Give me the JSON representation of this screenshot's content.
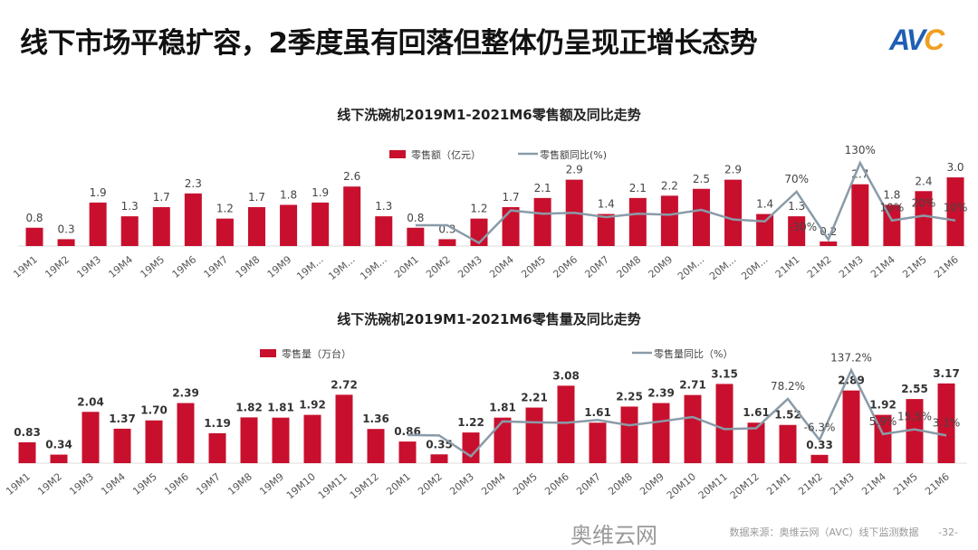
{
  "header": {
    "title": "线下市场平稳扩容，2季度虽有回落但整体仍呈现正增长态势",
    "logo": "AVC"
  },
  "footer": {
    "source": "数据来源：奥维云网（AVC）线下监测数据",
    "page": "-32-",
    "watermark": "奥维云网"
  },
  "colors": {
    "bar": "#c8102e",
    "line": "#8a9ba8"
  },
  "chart_data": [
    {
      "type": "bar+line",
      "title": "线下洗碗机2019M1-2021M6零售额及同比走势",
      "legend_position": "top",
      "categories": [
        "19M1",
        "19M2",
        "19M3",
        "19M4",
        "19M5",
        "19M6",
        "19M7",
        "19M8",
        "19M9",
        "19M...",
        "19M...",
        "19M...",
        "20M1",
        "20M2",
        "20M3",
        "20M4",
        "20M5",
        "20M6",
        "20M7",
        "20M8",
        "20M9",
        "20M...",
        "20M...",
        "20M...",
        "21M1",
        "21M2",
        "21M3",
        "21M4",
        "21M5",
        "21M6"
      ],
      "series": [
        {
          "name": "零售额（亿元）",
          "type": "bar",
          "values": [
            0.8,
            0.3,
            1.9,
            1.3,
            1.7,
            2.3,
            1.2,
            1.7,
            1.8,
            1.9,
            2.6,
            1.3,
            0.8,
            0.3,
            1.2,
            1.7,
            2.1,
            2.9,
            1.4,
            2.1,
            2.2,
            2.5,
            2.9,
            1.4,
            1.3,
            0.2,
            2.7,
            1.8,
            2.4,
            3.0
          ],
          "labels": [
            "0.8",
            "0.3",
            "1.9",
            "1.3",
            "1.7",
            "2.3",
            "1.2",
            "1.7",
            "1.8",
            "1.9",
            "2.6",
            "1.3",
            "0.8",
            "0.3",
            "1.2",
            "1.7",
            "2.1",
            "2.9",
            "1.4",
            "2.1",
            "2.2",
            "2.5",
            "2.9",
            "1.4",
            "1.3",
            "0.2",
            "2.7",
            "1.8",
            "2.4",
            "3.0"
          ]
        },
        {
          "name": "零售额同比(%)",
          "type": "line",
          "values": [
            null,
            null,
            null,
            null,
            null,
            null,
            null,
            null,
            null,
            null,
            null,
            null,
            0,
            0,
            -37,
            31,
            24,
            26,
            17,
            24,
            22,
            32,
            12,
            8,
            70,
            -30,
            130,
            10,
            20,
            10
          ],
          "labels": [
            "",
            "",
            "",
            "",
            "",
            "",
            "",
            "",
            "",
            "",
            "",
            "",
            "",
            "",
            "",
            "",
            "",
            "",
            "",
            "",
            "",
            "",
            "",
            "",
            "70%",
            "-30%",
            "130%",
            "10%",
            "20%",
            "10%"
          ]
        }
      ]
    },
    {
      "type": "bar+line",
      "title": "线下洗碗机2019M1-2021M6零售量及同比走势",
      "legend_position": "top",
      "categories": [
        "19M1",
        "19M2",
        "19M3",
        "19M4",
        "19M5",
        "19M6",
        "19M7",
        "19M8",
        "19M9",
        "19M10",
        "19M11",
        "19M12",
        "20M1",
        "20M2",
        "20M3",
        "20M4",
        "20M5",
        "20M6",
        "20M7",
        "20M8",
        "20M9",
        "20M10",
        "20M11",
        "20M12",
        "21M1",
        "21M2",
        "21M3",
        "21M4",
        "21M5",
        "21M6"
      ],
      "series": [
        {
          "name": "零售量（万台）",
          "type": "bar",
          "values": [
            0.83,
            0.34,
            2.04,
            1.37,
            1.7,
            2.39,
            1.19,
            1.82,
            1.81,
            1.92,
            2.72,
            1.36,
            0.86,
            0.35,
            1.22,
            1.81,
            2.21,
            3.08,
            1.61,
            2.25,
            2.39,
            2.71,
            3.15,
            1.61,
            1.52,
            0.33,
            2.89,
            1.92,
            2.55,
            3.17
          ],
          "labels": [
            "0.83",
            "0.34",
            "2.04",
            "1.37",
            "1.70",
            "2.39",
            "1.19",
            "1.82",
            "1.81",
            "1.92",
            "2.72",
            "1.36",
            "0.86",
            "0.35",
            "1.22",
            "1.81",
            "2.21",
            "3.08",
            "1.61",
            "2.25",
            "2.39",
            "2.71",
            "3.15",
            "1.61",
            "1.52",
            "0.33",
            "2.89",
            "1.92",
            "2.55",
            "3.17"
          ]
        },
        {
          "name": "零售量同比（%）",
          "type": "line",
          "values": [
            null,
            null,
            null,
            null,
            null,
            null,
            null,
            null,
            null,
            null,
            null,
            null,
            4,
            3,
            -40,
            32,
            30,
            29,
            35,
            24,
            32,
            41,
            16,
            18,
            78.2,
            -6.3,
            137.2,
            5.9,
            15.5,
            3.1
          ],
          "labels": [
            "",
            "",
            "",
            "",
            "",
            "",
            "",
            "",
            "",
            "",
            "",
            "",
            "",
            "",
            "",
            "",
            "",
            "",
            "",
            "",
            "",
            "",
            "",
            "",
            "78.2%",
            "-6.3%",
            "137.2%",
            "5.9%",
            "15.5%",
            "3.1%"
          ]
        }
      ]
    }
  ]
}
